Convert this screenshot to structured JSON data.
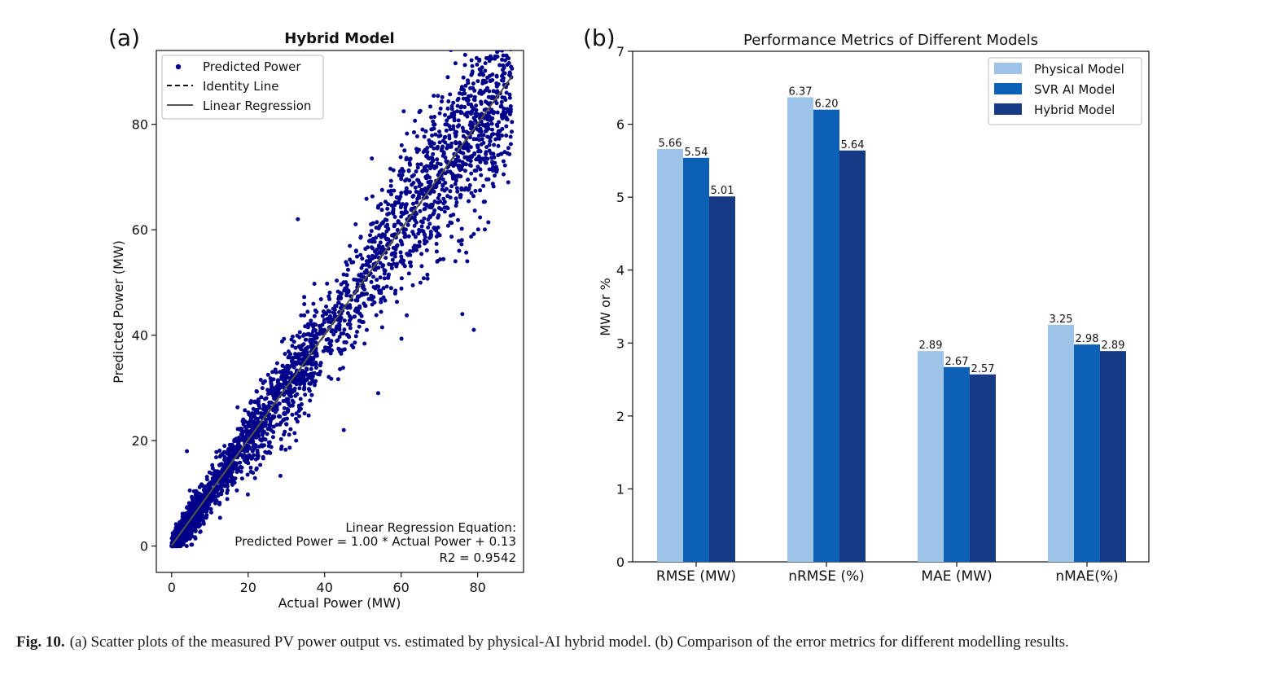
{
  "charts": [
    {
      "panel_label": "(a)",
      "chart_data": {
        "type": "scatter",
        "title": "Hybrid Model",
        "xlabel": "Actual Power (MW)",
        "ylabel": "Predicted Power (MW)",
        "xlim": [
          -4,
          92
        ],
        "ylim": [
          -5,
          94
        ],
        "xticks": [
          0,
          20,
          40,
          60,
          80
        ],
        "yticks": [
          0,
          20,
          40,
          60,
          80
        ],
        "legend_position": "top-left",
        "legend": [
          "Predicted Power",
          "Identity Line",
          "Linear Regression"
        ],
        "series": [
          {
            "name": "Predicted Power",
            "kind": "points",
            "color": "#00008b",
            "approx_count": 3000,
            "x_range": [
              0,
              89
            ],
            "relation": "y ≈ x, noise grows with power",
            "x": [
              0,
              5,
              10,
              20,
              30,
              40,
              50,
              60,
              70,
              80,
              85,
              4,
              11,
              33,
              36,
              45,
              54,
              76,
              79,
              88
            ],
            "y": [
              0,
              4,
              11,
              19,
              31,
              41,
              49,
              61,
              69,
              79,
              84,
              18,
              10,
              62,
              36,
              22,
              29,
              44,
              41,
              69
            ]
          },
          {
            "name": "Identity Line",
            "kind": "line",
            "style": "dashed",
            "color": "#111111",
            "x": [
              0,
              89
            ],
            "y": [
              0,
              89
            ]
          },
          {
            "name": "Linear Regression",
            "kind": "line",
            "style": "solid",
            "color": "#555555",
            "x": [
              0,
              89
            ],
            "y": [
              0.13,
              89.13
            ]
          }
        ],
        "annotation": [
          "Linear Regression Equation:",
          "Predicted Power = 1.00 * Actual Power + 0.13",
          "R2 = 0.9542"
        ]
      }
    },
    {
      "panel_label": "(b)",
      "chart_data": {
        "type": "bar",
        "title": "Performance Metrics of Different Models",
        "xlabel": "",
        "ylabel": "MW or %",
        "ylim": [
          0,
          7
        ],
        "yticks": [
          0,
          1,
          2,
          3,
          4,
          5,
          6,
          7
        ],
        "categories": [
          "RMSE (MW)",
          "nRMSE (%)",
          "MAE (MW)",
          "nMAE(%)"
        ],
        "legend_position": "top-right",
        "series": [
          {
            "name": "Physical Model",
            "color": "#9dc3e9",
            "values": [
              5.66,
              6.37,
              2.89,
              3.25
            ],
            "labels": [
              "5.66",
              "6.37",
              "2.89",
              "3.25"
            ]
          },
          {
            "name": "SVR AI Model",
            "color": "#0c60b5",
            "values": [
              5.54,
              6.2,
              2.67,
              2.98
            ],
            "labels": [
              "5.54",
              "6.20",
              "2.67",
              "2.98"
            ]
          },
          {
            "name": "Hybrid Model",
            "color": "#163a85",
            "values": [
              5.01,
              5.64,
              2.57,
              2.89
            ],
            "labels": [
              "5.01",
              "5.64",
              "2.57",
              "2.89"
            ]
          }
        ]
      }
    }
  ],
  "caption": {
    "label": "Fig. 10.",
    "text": "(a) Scatter plots of the measured PV power output vs. estimated by physical-AI hybrid model. (b) Comparison of the error metrics for different modelling results."
  }
}
